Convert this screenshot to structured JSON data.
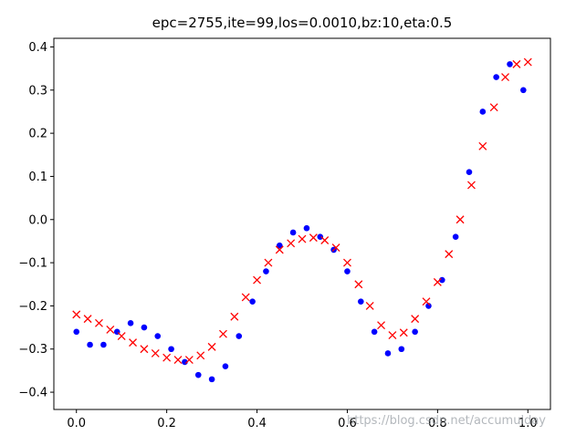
{
  "chart_data": {
    "type": "scatter",
    "title": "epc=2755,ite=99,los=0.0010,bz:10,eta:0.5",
    "xlabel": "",
    "ylabel": "",
    "xlim": [
      -0.05,
      1.05
    ],
    "ylim": [
      -0.44,
      0.42
    ],
    "xticks": [
      0.0,
      0.2,
      0.4,
      0.6,
      0.8,
      1.0
    ],
    "xtick_labels": [
      "0.0",
      "0.2",
      "0.4",
      "0.6",
      "0.8",
      "1.0"
    ],
    "yticks": [
      -0.4,
      -0.3,
      -0.2,
      -0.1,
      0.0,
      0.1,
      0.2,
      0.3,
      0.4
    ],
    "ytick_labels": [
      "−0.4",
      "−0.3",
      "−0.2",
      "−0.1",
      "0.0",
      "0.1",
      "0.2",
      "0.3",
      "0.4"
    ],
    "grid": false,
    "legend": "none",
    "series": [
      {
        "marker": "dot",
        "color": "#0000ff",
        "x": [
          0.0,
          0.03,
          0.06,
          0.09,
          0.12,
          0.15,
          0.18,
          0.21,
          0.24,
          0.27,
          0.3,
          0.33,
          0.36,
          0.39,
          0.42,
          0.45,
          0.48,
          0.51,
          0.54,
          0.57,
          0.6,
          0.63,
          0.66,
          0.69,
          0.72,
          0.75,
          0.78,
          0.81,
          0.84,
          0.87,
          0.9,
          0.93,
          0.96,
          0.99
        ],
        "y": [
          -0.26,
          -0.29,
          -0.29,
          -0.26,
          -0.24,
          -0.25,
          -0.27,
          -0.3,
          -0.33,
          -0.36,
          -0.37,
          -0.34,
          -0.27,
          -0.19,
          -0.12,
          -0.06,
          -0.03,
          -0.02,
          -0.04,
          -0.07,
          -0.12,
          -0.19,
          -0.26,
          -0.31,
          -0.3,
          -0.26,
          -0.2,
          -0.14,
          -0.04,
          0.11,
          0.25,
          0.33,
          0.36,
          0.3
        ]
      },
      {
        "marker": "x",
        "color": "#ff0000",
        "x": [
          0.0,
          0.025,
          0.05,
          0.075,
          0.1,
          0.125,
          0.15,
          0.175,
          0.2,
          0.225,
          0.25,
          0.275,
          0.3,
          0.325,
          0.35,
          0.375,
          0.4,
          0.425,
          0.45,
          0.475,
          0.5,
          0.525,
          0.55,
          0.575,
          0.6,
          0.625,
          0.65,
          0.675,
          0.7,
          0.725,
          0.75,
          0.775,
          0.8,
          0.825,
          0.85,
          0.875,
          0.9,
          0.925,
          0.95,
          0.975,
          1.0
        ],
        "y": [
          -0.22,
          -0.23,
          -0.24,
          -0.255,
          -0.27,
          -0.285,
          -0.3,
          -0.31,
          -0.32,
          -0.325,
          -0.325,
          -0.315,
          -0.295,
          -0.265,
          -0.225,
          -0.18,
          -0.14,
          -0.1,
          -0.07,
          -0.055,
          -0.045,
          -0.042,
          -0.048,
          -0.065,
          -0.1,
          -0.15,
          -0.2,
          -0.245,
          -0.268,
          -0.262,
          -0.23,
          -0.19,
          -0.145,
          -0.08,
          0.0,
          0.08,
          0.17,
          0.26,
          0.33,
          0.36,
          0.365
        ]
      }
    ]
  },
  "watermark": "https://blog.csdn.net/accumulday"
}
